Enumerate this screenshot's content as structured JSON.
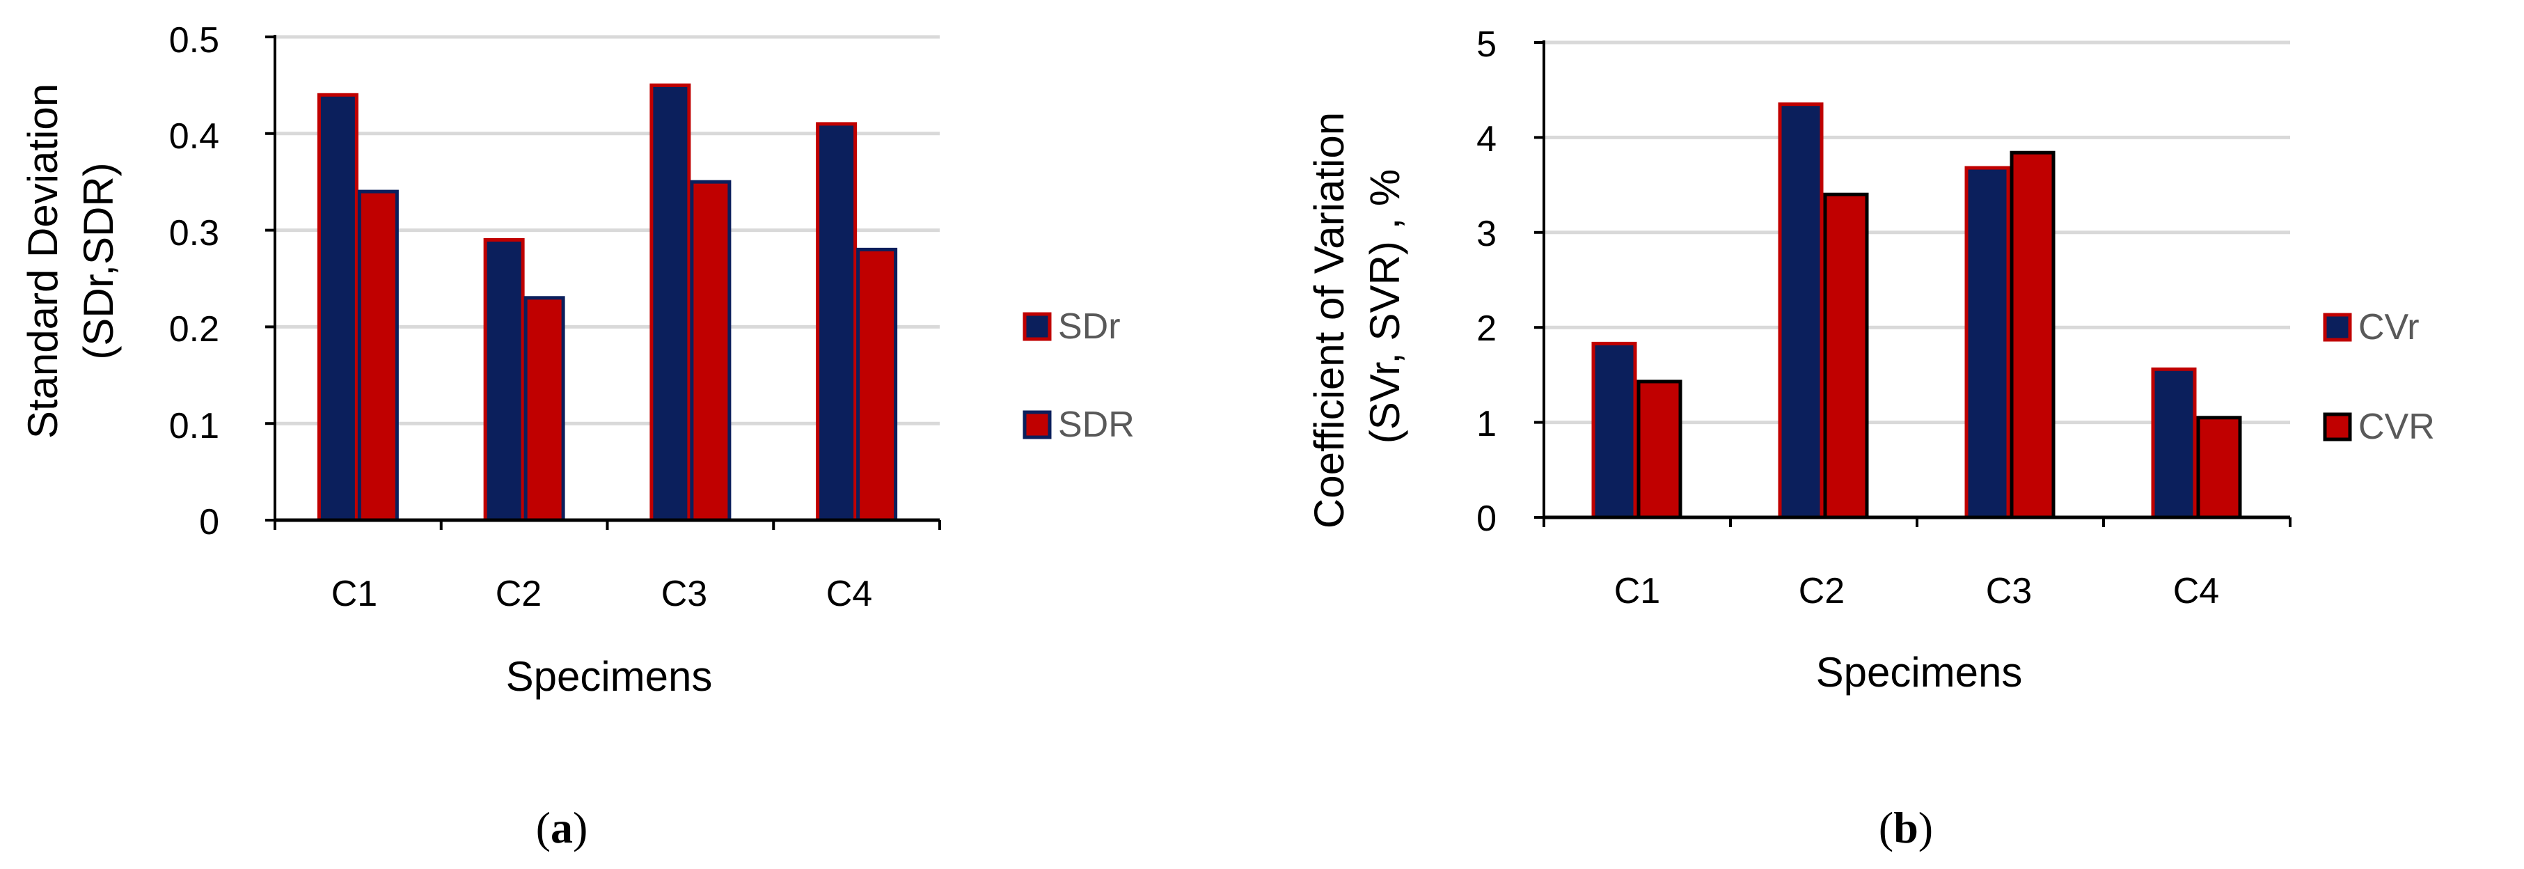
{
  "chart_data": [
    {
      "type": "bar",
      "panel_label": {
        "open": "(",
        "letter": "a",
        "close": ")"
      },
      "categories": [
        "C1",
        "C2",
        "C3",
        "C4"
      ],
      "series": [
        {
          "name": "SDr",
          "values": [
            0.44,
            0.29,
            0.45,
            0.41
          ],
          "fill": "#0b1f5c",
          "stroke": "#c00000"
        },
        {
          "name": "SDR",
          "values": [
            0.34,
            0.23,
            0.35,
            0.28
          ],
          "fill": "#c00000",
          "stroke": "#0b1f5c"
        }
      ],
      "title": "",
      "xlabel": "Specimens",
      "ylabel": [
        "Standard Deviation",
        "(SDr,SDR)"
      ],
      "ylim": [
        0,
        0.5
      ],
      "yticks": [
        "0",
        "0.1",
        "0.2",
        "0.3",
        "0.4",
        "0.5"
      ],
      "grid": true,
      "legend_position": "right"
    },
    {
      "type": "bar",
      "panel_label": {
        "open": "(",
        "letter": "b",
        "close": ")"
      },
      "categories": [
        "C1",
        "C2",
        "C3",
        "C4"
      ],
      "series": [
        {
          "name": "CVr",
          "values": [
            1.83,
            4.35,
            3.68,
            1.56
          ],
          "fill": "#0b1f5c",
          "stroke": "#c00000"
        },
        {
          "name": "CVR",
          "values": [
            1.43,
            3.4,
            3.84,
            1.05
          ],
          "fill": "#c00000",
          "stroke": "#000000"
        }
      ],
      "title": "",
      "xlabel": "Specimens",
      "ylabel": [
        "Coefficient of Variation",
        "(SVr, SVR) , %"
      ],
      "ylim": [
        0,
        5
      ],
      "yticks": [
        "0",
        "1",
        "2",
        "3",
        "4",
        "5"
      ],
      "grid": true,
      "legend_position": "right"
    }
  ]
}
